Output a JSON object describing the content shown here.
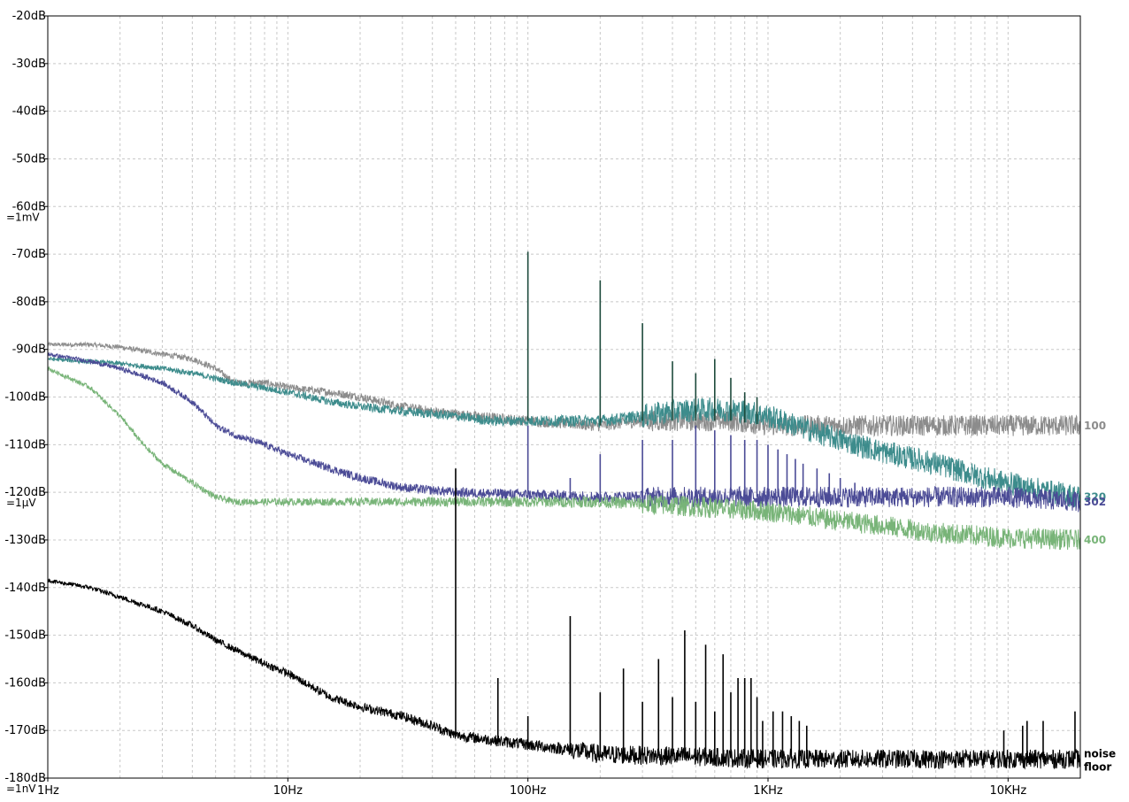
{
  "chart_data": {
    "type": "line",
    "title": "",
    "xlabel": "",
    "ylabel": "",
    "x_scale": "log",
    "xlim": [
      1,
      20000
    ],
    "ylim": [
      -180,
      -20
    ],
    "grid": true,
    "legend": "labels at right end of each trace",
    "y_ticks": [
      {
        "value": -20,
        "label": "-20dB"
      },
      {
        "value": -30,
        "label": "-30dB"
      },
      {
        "value": -40,
        "label": "-40dB"
      },
      {
        "value": -50,
        "label": "-50dB"
      },
      {
        "value": -60,
        "label": "-60dB"
      },
      {
        "value": -70,
        "label": "-70dB"
      },
      {
        "value": -80,
        "label": "-80dB"
      },
      {
        "value": -90,
        "label": "-90dB"
      },
      {
        "value": -100,
        "label": "-100dB"
      },
      {
        "value": -110,
        "label": "-110dB"
      },
      {
        "value": -120,
        "label": "-120dB"
      },
      {
        "value": -130,
        "label": "-130dB"
      },
      {
        "value": -140,
        "label": "-140dB"
      },
      {
        "value": -150,
        "label": "-150dB"
      },
      {
        "value": -160,
        "label": "-160dB"
      },
      {
        "value": -170,
        "label": "-170dB"
      },
      {
        "value": -180,
        "label": "-180dB"
      }
    ],
    "y_refs": [
      {
        "value": -60,
        "label": "=1mV"
      },
      {
        "value": -120,
        "label": "=1µV"
      },
      {
        "value": -180,
        "label": "=1nV"
      }
    ],
    "x_ticks": [
      {
        "value": 1,
        "label": "1Hz"
      },
      {
        "value": 10,
        "label": "10Hz"
      },
      {
        "value": 100,
        "label": "100Hz"
      },
      {
        "value": 1000,
        "label": "1KHz"
      },
      {
        "value": 10000,
        "label": "10KHz"
      }
    ],
    "series": [
      {
        "name": "100",
        "color": "#8c8c8c",
        "label_lines": [
          "100"
        ],
        "points": [
          [
            1,
            -89
          ],
          [
            1.5,
            -89
          ],
          [
            2,
            -89.5
          ],
          [
            3,
            -91
          ],
          [
            4,
            -92
          ],
          [
            5,
            -94
          ],
          [
            6,
            -97
          ],
          [
            8,
            -97
          ],
          [
            10,
            -98
          ],
          [
            15,
            -99
          ],
          [
            20,
            -100
          ],
          [
            30,
            -102
          ],
          [
            40,
            -103
          ],
          [
            60,
            -104
          ],
          [
            100,
            -105
          ],
          [
            200,
            -106
          ],
          [
            300,
            -105
          ],
          [
            500,
            -105
          ],
          [
            700,
            -105
          ],
          [
            1000,
            -106
          ],
          [
            2000,
            -106
          ],
          [
            5000,
            -106
          ],
          [
            10000,
            -106
          ],
          [
            20000,
            -106
          ]
        ],
        "noise": 2.2,
        "noise_from": 300
      },
      {
        "name": "320",
        "color": "#3d8c8c",
        "label_lines": [
          "320"
        ],
        "points": [
          [
            1,
            -92
          ],
          [
            2,
            -93
          ],
          [
            3,
            -94
          ],
          [
            4,
            -95
          ],
          [
            6,
            -97
          ],
          [
            10,
            -99
          ],
          [
            15,
            -101
          ],
          [
            20,
            -102
          ],
          [
            30,
            -103
          ],
          [
            50,
            -104
          ],
          [
            70,
            -105
          ],
          [
            100,
            -105
          ],
          [
            200,
            -105
          ],
          [
            300,
            -104
          ],
          [
            400,
            -103
          ],
          [
            600,
            -102.5
          ],
          [
            800,
            -103
          ],
          [
            1000,
            -104
          ],
          [
            1500,
            -107
          ],
          [
            2000,
            -109
          ],
          [
            3000,
            -111.5
          ],
          [
            5000,
            -114
          ],
          [
            8000,
            -117
          ],
          [
            12000,
            -119
          ],
          [
            20000,
            -121
          ]
        ],
        "noise": 2.5,
        "noise_from": 300
      },
      {
        "name": "302",
        "color": "#4b4b96",
        "label_lines": [
          "302"
        ],
        "points": [
          [
            1,
            -91
          ],
          [
            1.5,
            -92.5
          ],
          [
            2,
            -94
          ],
          [
            3,
            -97
          ],
          [
            4,
            -101
          ],
          [
            5,
            -106
          ],
          [
            6,
            -108
          ],
          [
            8,
            -110
          ],
          [
            10,
            -112
          ],
          [
            15,
            -115
          ],
          [
            20,
            -117
          ],
          [
            30,
            -119
          ],
          [
            50,
            -120
          ],
          [
            100,
            -120.5
          ],
          [
            200,
            -121
          ],
          [
            500,
            -121
          ],
          [
            1000,
            -121
          ],
          [
            2000,
            -121
          ],
          [
            5000,
            -121
          ],
          [
            10000,
            -121
          ],
          [
            20000,
            -122
          ]
        ],
        "noise": 2.2,
        "noise_from": 300
      },
      {
        "name": "400",
        "color": "#78b478",
        "label_lines": [
          "400"
        ],
        "points": [
          [
            1,
            -94
          ],
          [
            1.5,
            -98
          ],
          [
            2,
            -104
          ],
          [
            2.5,
            -110
          ],
          [
            3,
            -114
          ],
          [
            4,
            -118
          ],
          [
            5,
            -121
          ],
          [
            6,
            -122
          ],
          [
            8,
            -122
          ],
          [
            10,
            -122
          ],
          [
            20,
            -122
          ],
          [
            50,
            -122
          ],
          [
            100,
            -122
          ],
          [
            200,
            -122
          ],
          [
            500,
            -123
          ],
          [
            1000,
            -124
          ],
          [
            2000,
            -126
          ],
          [
            3000,
            -127
          ],
          [
            5000,
            -128.5
          ],
          [
            10000,
            -129.5
          ],
          [
            20000,
            -130
          ]
        ],
        "noise": 2.2,
        "noise_from": 300
      },
      {
        "name": "noise floor",
        "color": "#000000",
        "label_lines": [
          "noise",
          "floor"
        ],
        "points": [
          [
            1,
            -138.5
          ],
          [
            1.5,
            -140
          ],
          [
            2,
            -142
          ],
          [
            3,
            -145
          ],
          [
            4,
            -148
          ],
          [
            5,
            -151
          ],
          [
            6,
            -153
          ],
          [
            8,
            -156
          ],
          [
            10,
            -158
          ],
          [
            15,
            -163
          ],
          [
            20,
            -165
          ],
          [
            30,
            -167
          ],
          [
            40,
            -169
          ],
          [
            50,
            -171
          ],
          [
            70,
            -172
          ],
          [
            100,
            -173
          ],
          [
            150,
            -174
          ],
          [
            200,
            -175
          ],
          [
            500,
            -175.5
          ],
          [
            1000,
            -176
          ],
          [
            5000,
            -176
          ],
          [
            10000,
            -176
          ],
          [
            20000,
            -176
          ]
        ],
        "noise": 2.0,
        "noise_from": 150
      }
    ],
    "spikes": [
      {
        "series": "100",
        "f": 100,
        "peak": -69.5
      },
      {
        "series": "100",
        "f": 200,
        "peak": -75.5
      },
      {
        "series": "100",
        "f": 300,
        "peak": -84.5
      },
      {
        "series": "100",
        "f": 400,
        "peak": -92.5
      },
      {
        "series": "100",
        "f": 500,
        "peak": -95
      },
      {
        "series": "100",
        "f": 600,
        "peak": -92
      },
      {
        "series": "100",
        "f": 700,
        "peak": -96
      },
      {
        "series": "100",
        "f": 800,
        "peak": -99
      },
      {
        "series": "100",
        "f": 900,
        "peak": -100
      },
      {
        "series": "302",
        "f": 100,
        "peak": -106
      },
      {
        "series": "302",
        "f": 150,
        "peak": -117
      },
      {
        "series": "302",
        "f": 200,
        "peak": -112
      },
      {
        "series": "302",
        "f": 300,
        "peak": -109
      },
      {
        "series": "302",
        "f": 400,
        "peak": -109
      },
      {
        "series": "302",
        "f": 500,
        "peak": -106
      },
      {
        "series": "302",
        "f": 600,
        "peak": -107
      },
      {
        "series": "302",
        "f": 700,
        "peak": -108
      },
      {
        "series": "302",
        "f": 800,
        "peak": -109
      },
      {
        "series": "302",
        "f": 900,
        "peak": -109
      },
      {
        "series": "302",
        "f": 1000,
        "peak": -110
      },
      {
        "series": "302",
        "f": 1100,
        "peak": -111
      },
      {
        "series": "302",
        "f": 1200,
        "peak": -112
      },
      {
        "series": "302",
        "f": 1300,
        "peak": -113
      },
      {
        "series": "302",
        "f": 1400,
        "peak": -114
      },
      {
        "series": "302",
        "f": 1600,
        "peak": -115
      },
      {
        "series": "302",
        "f": 1800,
        "peak": -116
      },
      {
        "series": "302",
        "f": 2000,
        "peak": -117
      },
      {
        "series": "302",
        "f": 2300,
        "peak": -118
      },
      {
        "series": "noise floor",
        "f": 50,
        "peak": -115
      },
      {
        "series": "noise floor",
        "f": 75,
        "peak": -159
      },
      {
        "series": "noise floor",
        "f": 100,
        "peak": -167
      },
      {
        "series": "noise floor",
        "f": 150,
        "peak": -146
      },
      {
        "series": "noise floor",
        "f": 200,
        "peak": -162
      },
      {
        "series": "noise floor",
        "f": 250,
        "peak": -157
      },
      {
        "series": "noise floor",
        "f": 300,
        "peak": -164
      },
      {
        "series": "noise floor",
        "f": 350,
        "peak": -155
      },
      {
        "series": "noise floor",
        "f": 400,
        "peak": -163
      },
      {
        "series": "noise floor",
        "f": 450,
        "peak": -149
      },
      {
        "series": "noise floor",
        "f": 500,
        "peak": -164
      },
      {
        "series": "noise floor",
        "f": 550,
        "peak": -152
      },
      {
        "series": "noise floor",
        "f": 600,
        "peak": -166
      },
      {
        "series": "noise floor",
        "f": 650,
        "peak": -154
      },
      {
        "series": "noise floor",
        "f": 700,
        "peak": -162
      },
      {
        "series": "noise floor",
        "f": 750,
        "peak": -159
      },
      {
        "series": "noise floor",
        "f": 800,
        "peak": -159
      },
      {
        "series": "noise floor",
        "f": 850,
        "peak": -159
      },
      {
        "series": "noise floor",
        "f": 900,
        "peak": -163
      },
      {
        "series": "noise floor",
        "f": 950,
        "peak": -168
      },
      {
        "series": "noise floor",
        "f": 1050,
        "peak": -166
      },
      {
        "series": "noise floor",
        "f": 1150,
        "peak": -166
      },
      {
        "series": "noise floor",
        "f": 1250,
        "peak": -167
      },
      {
        "series": "noise floor",
        "f": 1350,
        "peak": -168
      },
      {
        "series": "noise floor",
        "f": 1450,
        "peak": -169
      },
      {
        "series": "noise floor",
        "f": 9600,
        "peak": -170
      },
      {
        "series": "noise floor",
        "f": 11500,
        "peak": -169
      },
      {
        "series": "noise floor",
        "f": 12000,
        "peak": -168
      },
      {
        "series": "noise floor",
        "f": 14000,
        "peak": -168
      },
      {
        "series": "noise floor",
        "f": 19000,
        "peak": -166
      }
    ]
  }
}
